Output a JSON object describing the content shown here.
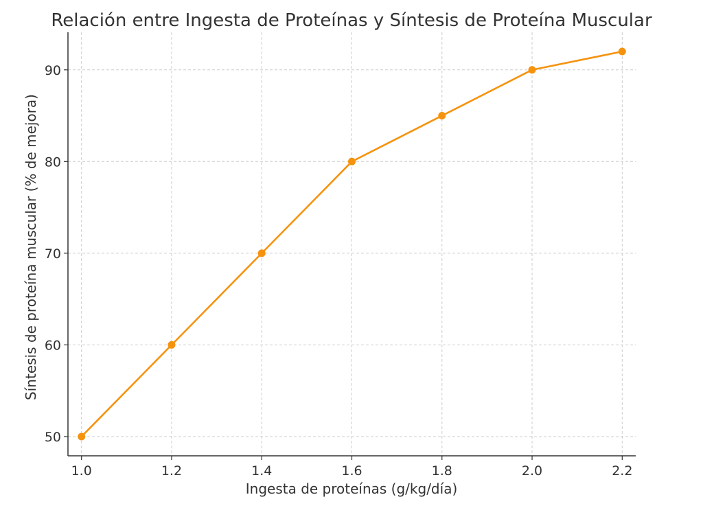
{
  "chart_data": {
    "type": "line",
    "title": "Relación entre Ingesta de Proteínas y Síntesis de Proteína Muscular",
    "xlabel": "Ingesta de proteínas (g/kg/día)",
    "ylabel": "Síntesis de proteína muscular (% de mejora)",
    "x": [
      1.0,
      1.2,
      1.4,
      1.6,
      1.8,
      2.0,
      2.2
    ],
    "x_tick_labels": [
      "1.0",
      "1.2",
      "1.4",
      "1.6",
      "1.8",
      "2.0",
      "2.2"
    ],
    "y_ticks": [
      50,
      60,
      70,
      80,
      90
    ],
    "y_tick_labels": [
      "50",
      "60",
      "70",
      "80",
      "90"
    ],
    "xlim": [
      0.97,
      2.23
    ],
    "ylim": [
      47.9,
      94.1
    ],
    "grid": true,
    "series": [
      {
        "values": [
          50,
          60,
          70,
          80,
          85,
          90,
          92
        ],
        "color": "#f5930f",
        "marker": "circle"
      }
    ]
  }
}
